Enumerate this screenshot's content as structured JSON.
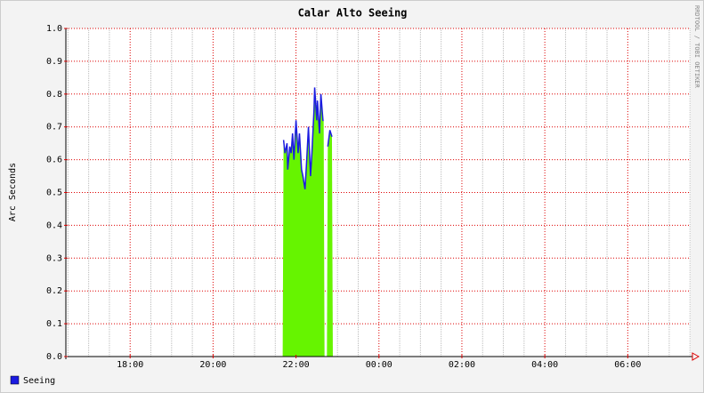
{
  "chart_data": {
    "type": "area",
    "title": "Calar Alto Seeing",
    "y_label": "Arc Seconds",
    "side_text": "RRDTOOL / TOBI OETIKER",
    "x": [
      "21:42",
      "21:44",
      "21:47",
      "21:48",
      "21:51",
      "21:53",
      "21:55",
      "21:57",
      "22:00",
      "22:03",
      "22:05",
      "22:08",
      "22:10",
      "22:13",
      "22:15",
      "22:18",
      "22:21",
      "22:23",
      "22:26",
      "22:27",
      "22:30",
      "22:31",
      "22:34",
      "22:36",
      "22:39",
      "22:40",
      "22:43",
      "22:46",
      "22:49",
      "22:52"
    ],
    "series": [
      {
        "name": "Seeing",
        "color": "#1b1be0",
        "fill": "#66f400",
        "values": [
          0.66,
          0.62,
          0.65,
          0.57,
          0.64,
          0.62,
          0.68,
          0.6,
          0.72,
          0.62,
          0.68,
          0.57,
          0.55,
          0.51,
          0.58,
          0.7,
          0.55,
          0.62,
          0.75,
          0.82,
          0.72,
          0.78,
          0.68,
          0.8,
          0.72,
          0.72,
          null,
          0.64,
          0.69,
          0.67
        ]
      }
    ],
    "xlim": [
      "16:27",
      "07:31"
    ],
    "xticks": [
      "18:00",
      "20:00",
      "22:00",
      "00:00",
      "02:00",
      "04:00",
      "06:00"
    ],
    "ylim": [
      0,
      1
    ],
    "yticks": [
      {
        "value": 0,
        "label": "0.0"
      },
      0.1,
      0.2,
      0.3,
      0.4,
      0.5,
      0.6,
      0.7,
      0.8,
      0.9,
      {
        "value": 1,
        "label": "1.0"
      }
    ],
    "grid": true
  }
}
